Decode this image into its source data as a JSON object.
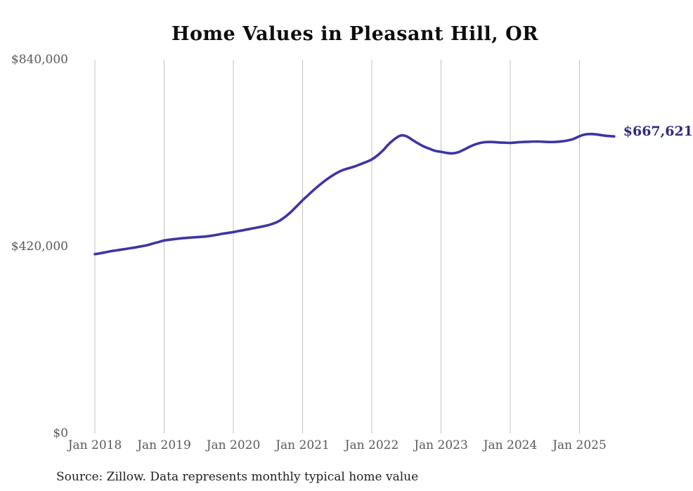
{
  "page": {
    "title": "Home Values in Pleasant Hill, OR",
    "source_note": "Source: Zillow. Data represents monthly typical home value"
  },
  "chart_data": {
    "type": "line",
    "title": "Home Values in Pleasant Hill, OR",
    "series_name": "Monthly typical home value (USD)",
    "x": [
      "2018-01",
      "2018-02",
      "2018-03",
      "2018-04",
      "2018-05",
      "2018-06",
      "2018-07",
      "2018-08",
      "2018-09",
      "2018-10",
      "2018-11",
      "2018-12",
      "2019-01",
      "2019-02",
      "2019-03",
      "2019-04",
      "2019-05",
      "2019-06",
      "2019-07",
      "2019-08",
      "2019-09",
      "2019-10",
      "2019-11",
      "2019-12",
      "2020-01",
      "2020-02",
      "2020-03",
      "2020-04",
      "2020-05",
      "2020-06",
      "2020-07",
      "2020-08",
      "2020-09",
      "2020-10",
      "2020-11",
      "2020-12",
      "2021-01",
      "2021-02",
      "2021-03",
      "2021-04",
      "2021-05",
      "2021-06",
      "2021-07",
      "2021-08",
      "2021-09",
      "2021-10",
      "2021-11",
      "2021-12",
      "2022-01",
      "2022-02",
      "2022-03",
      "2022-04",
      "2022-05",
      "2022-06",
      "2022-07",
      "2022-08",
      "2022-09",
      "2022-10",
      "2022-11",
      "2022-12",
      "2023-01",
      "2023-02",
      "2023-03",
      "2023-04",
      "2023-05",
      "2023-06",
      "2023-07",
      "2023-08",
      "2023-09",
      "2023-10",
      "2023-11",
      "2023-12",
      "2024-01",
      "2024-02",
      "2024-03",
      "2024-04",
      "2024-05",
      "2024-06",
      "2024-07",
      "2024-08",
      "2024-09",
      "2024-10",
      "2024-11",
      "2024-12",
      "2025-01",
      "2025-02",
      "2025-03",
      "2025-04",
      "2025-05",
      "2025-06",
      "2025-07"
    ],
    "values": [
      403000,
      405000,
      407500,
      410000,
      412000,
      414000,
      416000,
      418000,
      420500,
      423000,
      426500,
      430000,
      433500,
      435500,
      437000,
      438500,
      439500,
      440500,
      441500,
      442500,
      444000,
      446000,
      448500,
      450500,
      452500,
      455000,
      457500,
      460000,
      462500,
      465000,
      468000,
      472000,
      478000,
      487000,
      498000,
      511000,
      524000,
      536000,
      548000,
      559000,
      569000,
      578000,
      586000,
      592000,
      596000,
      600000,
      605000,
      610000,
      616000,
      625000,
      637000,
      651000,
      662000,
      669500,
      668000,
      660000,
      652000,
      645000,
      640000,
      635000,
      633000,
      630500,
      629500,
      632000,
      638000,
      644500,
      650000,
      653500,
      655000,
      655000,
      654000,
      653500,
      653000,
      654000,
      655000,
      655500,
      656000,
      656000,
      655500,
      655000,
      655500,
      656500,
      658500,
      662000,
      668000,
      672000,
      673000,
      672000,
      670000,
      668500,
      667621
    ],
    "last_value": 667621,
    "end_label": "$667,621",
    "ylim": [
      0,
      840000
    ],
    "yticks": [
      {
        "value": 840000,
        "label": "$840,000"
      },
      {
        "value": 420000,
        "label": "$420,000"
      },
      {
        "value": 0,
        "label": "$0"
      }
    ],
    "xticks": [
      "Jan 2018",
      "Jan 2019",
      "Jan 2020",
      "Jan 2021",
      "Jan 2022",
      "Jan 2023",
      "Jan 2024",
      "Jan 2025"
    ],
    "grid": "vertical-only",
    "legend": "none",
    "line_color": "#3d35a5",
    "end_label_color": "#2f2a80",
    "grid_color": "#c2c2c2",
    "tick_color": "#595959"
  }
}
